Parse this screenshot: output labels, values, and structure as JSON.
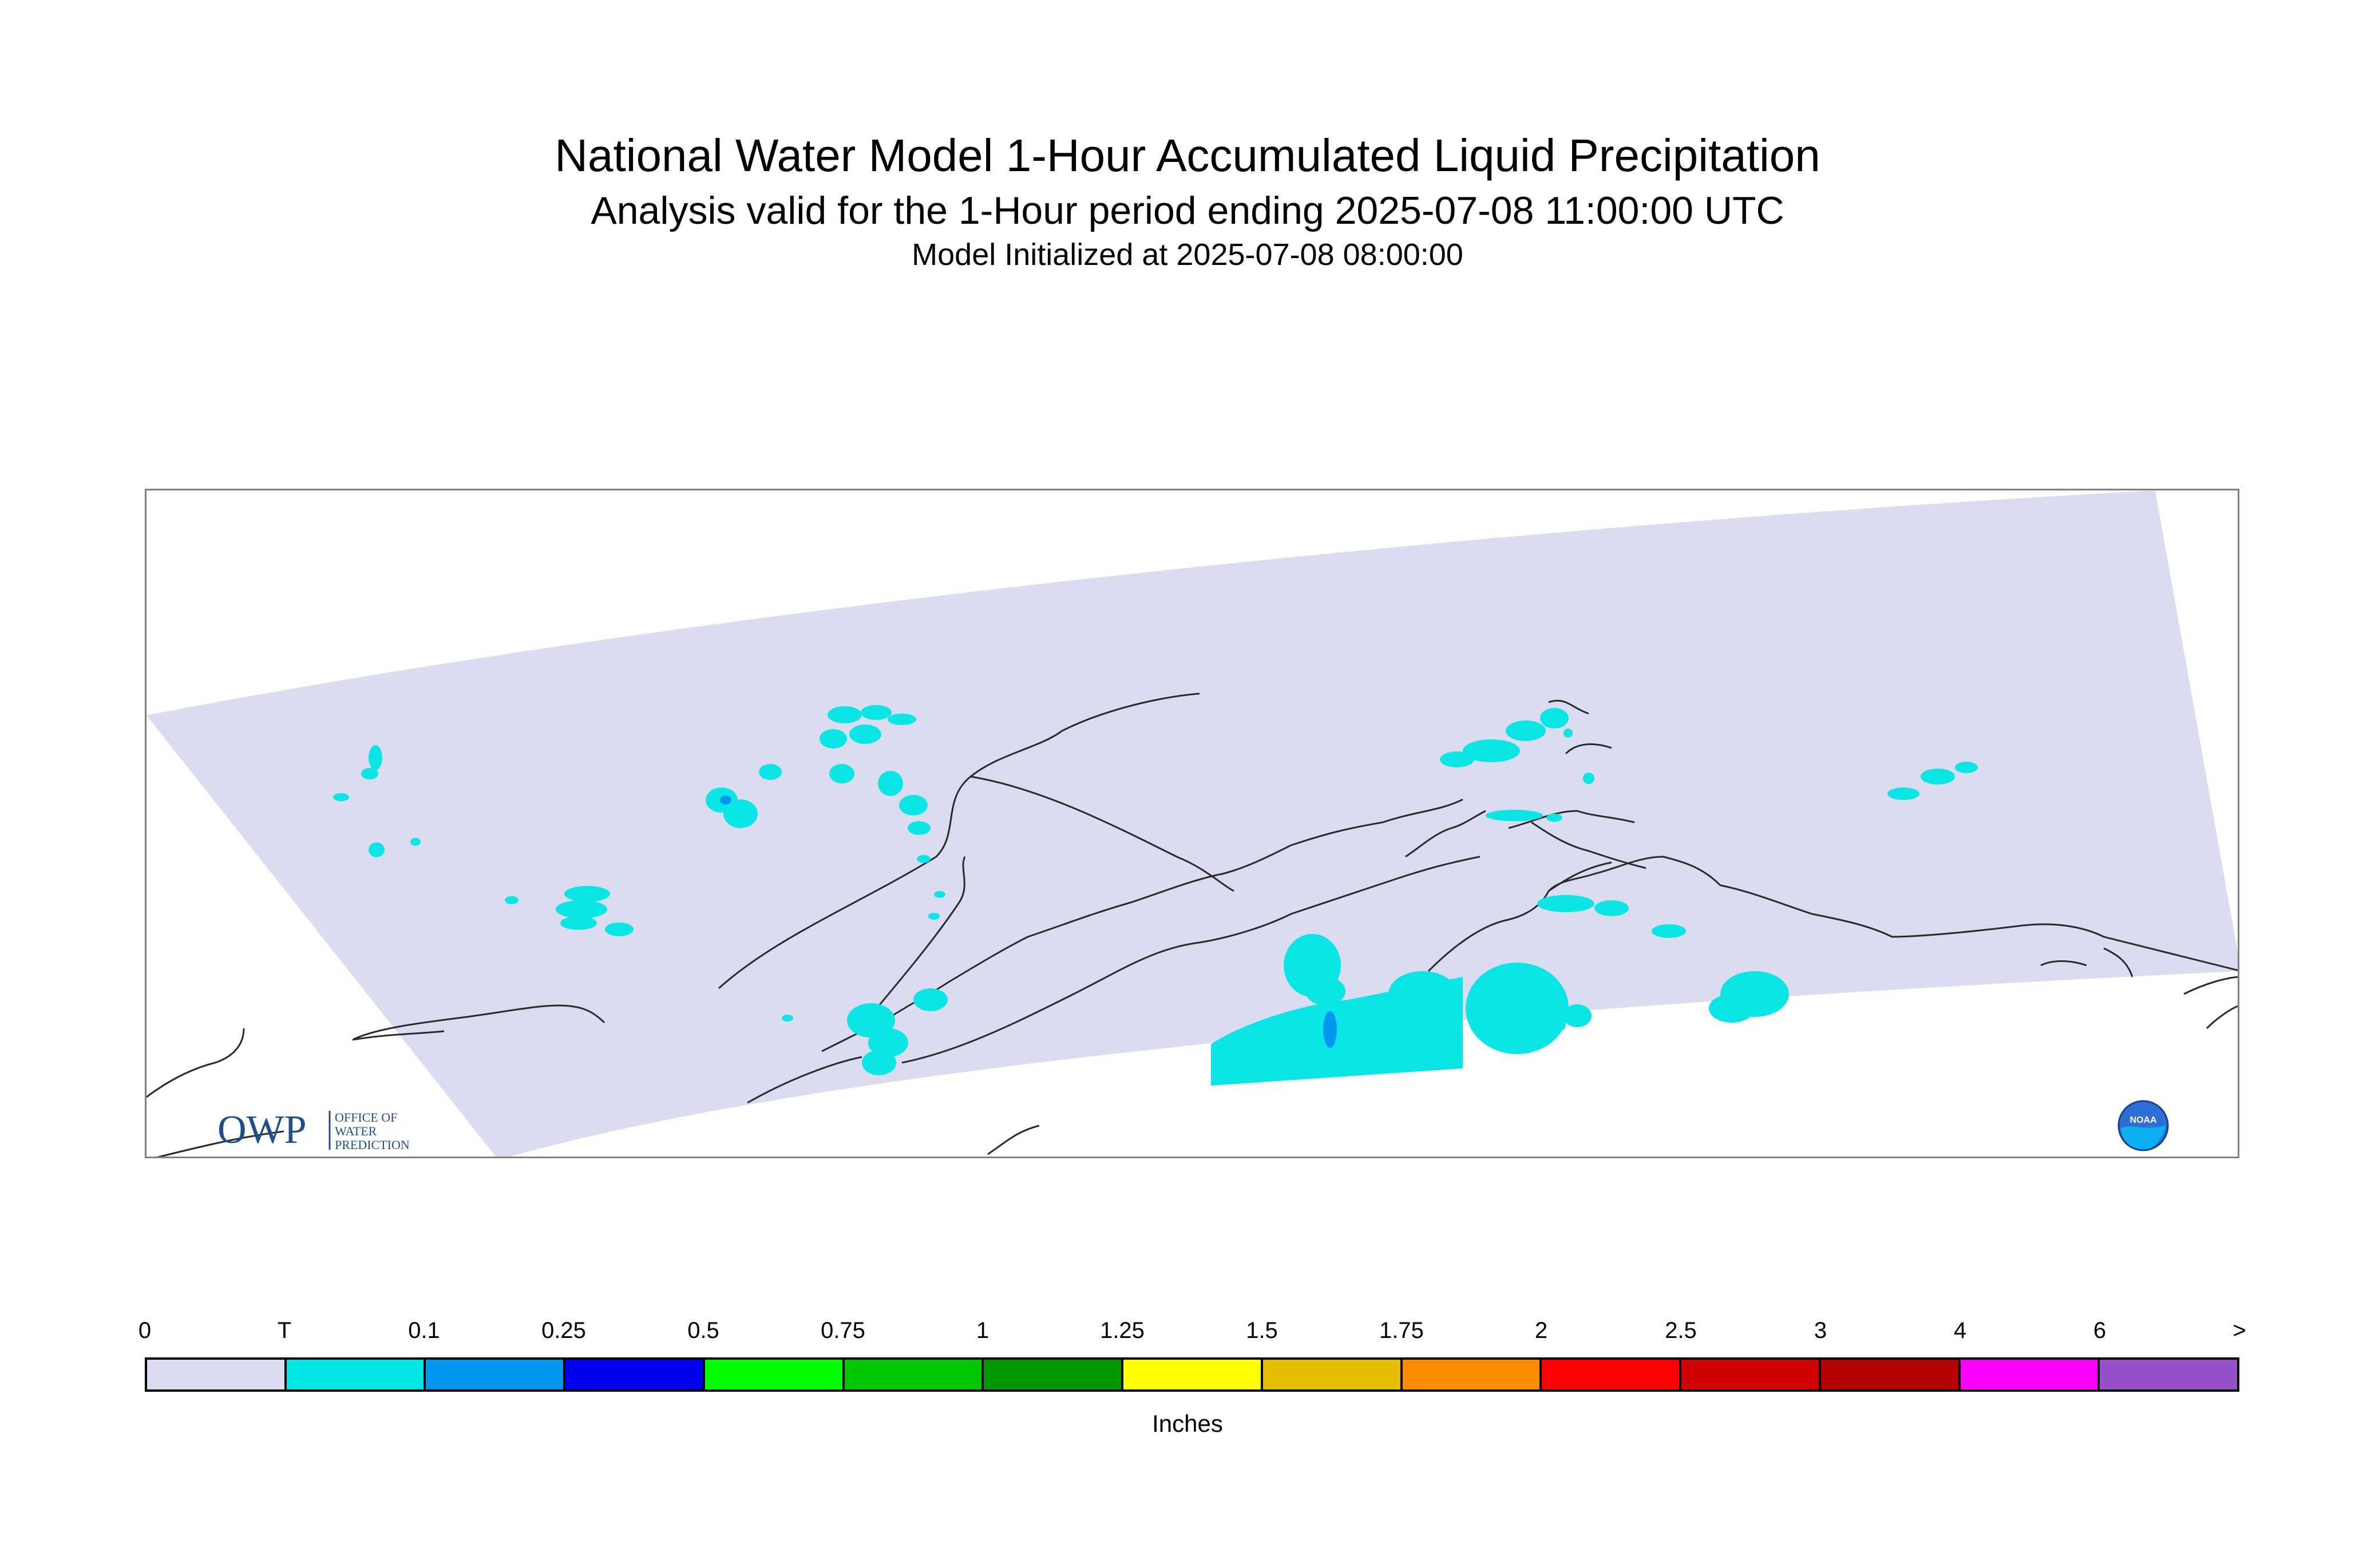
{
  "header": {
    "title": "National Water Model 1-Hour Accumulated Liquid Precipitation",
    "subtitle": "Analysis valid for the 1-Hour period ending 2025-07-08 11:00:00 UTC",
    "init": "Model Initialized at 2025-07-08 08:00:00"
  },
  "logos": {
    "owp_mark": "OWP",
    "owp_text": [
      "OFFICE OF",
      "WATER",
      "PREDICTION"
    ],
    "noaa_text": "NOAA"
  },
  "colors": {
    "domain_fill": "#dcdcf0",
    "coastline": "#2a2a2a",
    "trace": "#0ae6e6",
    "light_blue": "#0096f0"
  },
  "legend": {
    "tick_labels": [
      "0",
      "T",
      "0.1",
      "0.25",
      "0.5",
      "0.75",
      "1",
      "1.25",
      "1.5",
      "1.75",
      "2",
      "2.5",
      "3",
      "4",
      "6",
      ">"
    ],
    "bins": [
      {
        "color": "#dcdcf0"
      },
      {
        "color": "#00e6e6"
      },
      {
        "color": "#0096f0"
      },
      {
        "color": "#0000f0"
      },
      {
        "color": "#00ff00"
      },
      {
        "color": "#00c800"
      },
      {
        "color": "#009600"
      },
      {
        "color": "#ffff00"
      },
      {
        "color": "#e6be00"
      },
      {
        "color": "#ff8c00"
      },
      {
        "color": "#ff0000"
      },
      {
        "color": "#d20000"
      },
      {
        "color": "#b40000"
      },
      {
        "color": "#ff00ff"
      },
      {
        "color": "#9650c8"
      }
    ],
    "units": "Inches"
  }
}
